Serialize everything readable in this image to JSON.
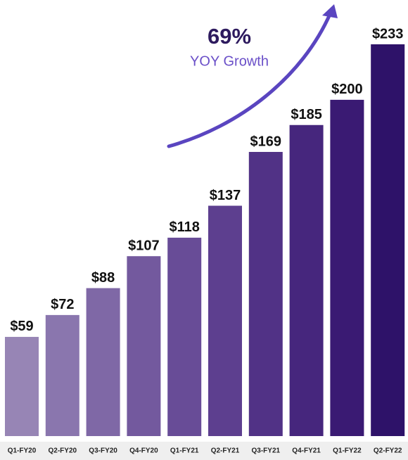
{
  "chart_data": {
    "type": "bar",
    "annotation": {
      "value": "69%",
      "label": "YOY Growth"
    },
    "categories": [
      "Q1-FY20",
      "Q2-FY20",
      "Q3-FY20",
      "Q4-FY20",
      "Q1-FY21",
      "Q2-FY21",
      "Q3-FY21",
      "Q4-FY21",
      "Q1-FY22",
      "Q2-FY22"
    ],
    "values": [
      59,
      72,
      88,
      107,
      118,
      137,
      169,
      185,
      200,
      233
    ],
    "value_labels": [
      "$59",
      "$72",
      "$88",
      "$107",
      "$118",
      "$137",
      "$169",
      "$185",
      "$200",
      "$233"
    ],
    "colors": [
      "#9785b5",
      "#8a76ae",
      "#7f68a6",
      "#73599e",
      "#684c97",
      "#5d3f8f",
      "#513286",
      "#46267d",
      "#3a1a73",
      "#2e1269"
    ]
  }
}
